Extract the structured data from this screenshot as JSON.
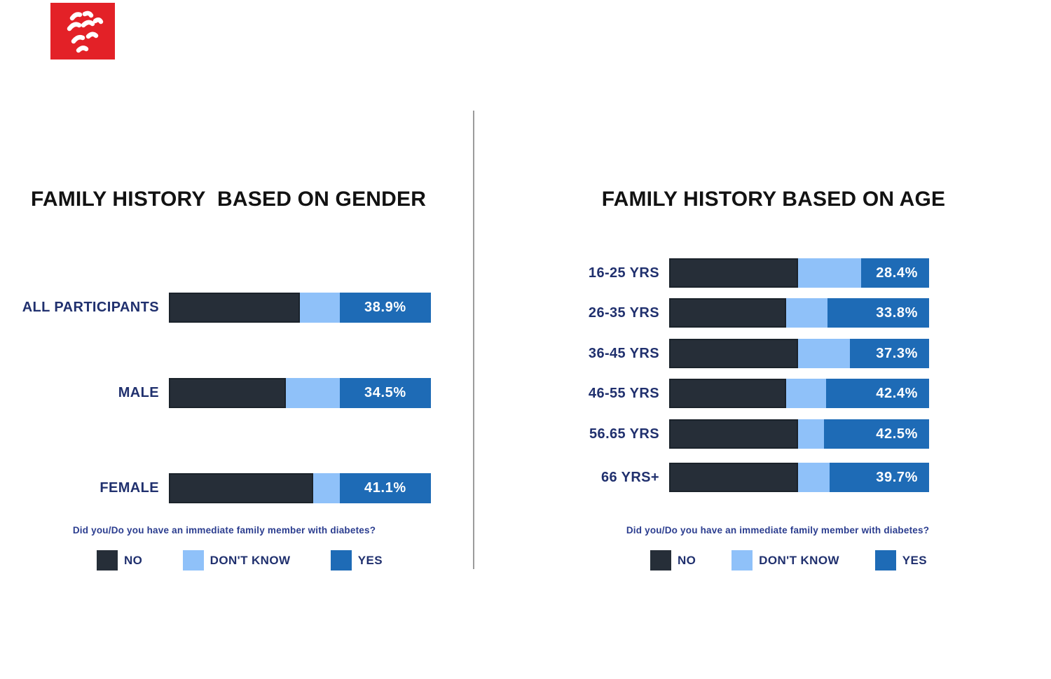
{
  "page": {
    "background": "#ffffff"
  },
  "logo": {
    "name": "red-thaana-script-logo",
    "background_color": "#e32127",
    "glyph_color": "#ffffff"
  },
  "colors": {
    "no": "#262E38",
    "dont_know": "#8FC1F9",
    "yes": "#1E6BB6",
    "title_text": "#121212",
    "category_label_text": "#20306E",
    "question_text": "#2B3D8F",
    "value_text": "#FFFFFF",
    "divider": "#9B9B9B"
  },
  "legend": {
    "question": "Did you/Do you have an immediate family member with diabetes?",
    "items": [
      {
        "label": "NO",
        "color": "#262E38"
      },
      {
        "label": "DON'T KNOW",
        "color": "#8FC1F9"
      },
      {
        "label": "YES",
        "color": "#1E6BB6"
      }
    ]
  },
  "chart_data": [
    {
      "type": "bar",
      "orientation": "horizontal",
      "stacked": true,
      "title": "FAMILY HISTORY  BASED ON GENDER",
      "question": "Did you/Do you have an immediate family member with diabetes?",
      "categories": [
        "ALL PARTICIPANTS",
        "MALE",
        "FEMALE"
      ],
      "series": [
        {
          "name": "NO",
          "color": "#262E38",
          "bar_fraction_pct": [
            50.0,
            44.7,
            55.1
          ]
        },
        {
          "name": "DON'T KNOW",
          "color": "#8FC1F9",
          "bar_fraction_pct": [
            15.2,
            20.5,
            10.1
          ]
        },
        {
          "name": "YES",
          "color": "#1E6BB6",
          "bar_fraction_pct": [
            34.8,
            34.8,
            34.8
          ],
          "values": [
            38.9,
            34.5,
            41.1
          ],
          "value_labels": [
            "38.9%",
            "34.5%",
            "41.1%"
          ]
        }
      ],
      "legend_position": "bottom",
      "grid": false
    },
    {
      "type": "bar",
      "orientation": "horizontal",
      "stacked": true,
      "title": "FAMILY HISTORY BASED ON AGE",
      "question": "Did you/Do you have an immediate family member with diabetes?",
      "categories": [
        "16-25 YRS",
        "26-35 YRS",
        "36-45 YRS",
        "46-55 YRS",
        "56.65 YRS",
        "66 YRS+"
      ],
      "series": [
        {
          "name": "NO",
          "color": "#262E38",
          "bar_fraction_pct": [
            49.7,
            44.9,
            49.7,
            44.9,
            49.5,
            49.5
          ]
        },
        {
          "name": "DON'T KNOW",
          "color": "#8FC1F9",
          "bar_fraction_pct": [
            24.1,
            16.1,
            19.8,
            15.5,
            10.0,
            12.1
          ]
        },
        {
          "name": "YES",
          "color": "#1E6BB6",
          "bar_fraction_pct": [
            26.2,
            39.0,
            30.5,
            39.6,
            40.5,
            38.4
          ],
          "values": [
            28.4,
            33.8,
            37.3,
            42.4,
            42.5,
            39.7
          ],
          "value_labels": [
            "28.4%",
            "33.8%",
            "37.3%",
            "42.4%",
            "42.5%",
            "39.7%"
          ]
        }
      ],
      "legend_position": "bottom",
      "grid": false
    }
  ]
}
